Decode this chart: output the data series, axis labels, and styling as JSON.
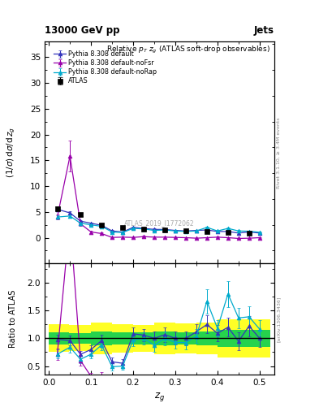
{
  "title_top": "13000 GeV pp",
  "title_top_right": "Jets",
  "plot_title": "Relative $p_T$ $z_g$ (ATLAS soft-drop observables)",
  "ylabel_main": "(1/$\\sigma$) d$\\sigma$/d $z_g$",
  "ylabel_ratio": "Ratio to ATLAS",
  "xlabel": "$z_g$",
  "watermark": "ATLAS_2019_I1772062",
  "right_label_top": "Rivet 3.1.10, ≥ 3.4M events",
  "right_label_bottom": "[arXiv:1306.3436]",
  "atlas_x": [
    0.02,
    0.075,
    0.125,
    0.175,
    0.225,
    0.275,
    0.325,
    0.375,
    0.425,
    0.475
  ],
  "atlas_y": [
    5.6,
    4.5,
    2.5,
    2.0,
    1.7,
    1.5,
    1.3,
    1.2,
    1.0,
    0.9
  ],
  "atlas_yerr": [
    0.4,
    0.3,
    0.2,
    0.15,
    0.12,
    0.12,
    0.1,
    0.1,
    0.1,
    0.09
  ],
  "default_x": [
    0.02,
    0.05,
    0.075,
    0.1,
    0.125,
    0.15,
    0.175,
    0.2,
    0.225,
    0.25,
    0.275,
    0.3,
    0.325,
    0.35,
    0.375,
    0.4,
    0.425,
    0.45,
    0.475,
    0.5
  ],
  "default_y": [
    5.5,
    4.8,
    3.2,
    2.8,
    2.4,
    1.3,
    1.1,
    2.0,
    1.8,
    1.6,
    1.6,
    1.4,
    1.3,
    1.4,
    1.5,
    1.2,
    1.2,
    0.9,
    1.1,
    0.9
  ],
  "default_yerr": [
    0.25,
    0.25,
    0.2,
    0.18,
    0.18,
    0.12,
    0.12,
    0.15,
    0.15,
    0.15,
    0.15,
    0.12,
    0.12,
    0.12,
    0.15,
    0.12,
    0.12,
    0.12,
    0.12,
    0.1
  ],
  "nofsr_x": [
    0.02,
    0.05,
    0.075,
    0.1,
    0.125,
    0.15,
    0.175,
    0.2,
    0.225,
    0.25,
    0.275,
    0.3,
    0.325,
    0.35,
    0.375,
    0.4,
    0.425,
    0.45,
    0.475,
    0.5
  ],
  "nofsr_y": [
    4.0,
    15.8,
    2.7,
    1.1,
    0.8,
    0.05,
    0.1,
    0.05,
    0.2,
    0.1,
    0.1,
    0.05,
    0.0,
    -0.1,
    0.0,
    0.1,
    0.0,
    -0.15,
    -0.1,
    0.0
  ],
  "nofsr_yerr": [
    0.5,
    3.0,
    0.35,
    0.18,
    0.18,
    0.1,
    0.1,
    0.08,
    0.15,
    0.12,
    0.12,
    0.08,
    0.08,
    0.08,
    0.08,
    0.08,
    0.08,
    0.08,
    0.08,
    0.08
  ],
  "norap_x": [
    0.02,
    0.05,
    0.075,
    0.1,
    0.125,
    0.15,
    0.175,
    0.2,
    0.225,
    0.25,
    0.275,
    0.3,
    0.325,
    0.35,
    0.375,
    0.4,
    0.425,
    0.45,
    0.475,
    0.5
  ],
  "norap_y": [
    4.0,
    4.2,
    2.8,
    2.5,
    2.2,
    1.1,
    1.0,
    1.8,
    1.7,
    1.4,
    1.5,
    1.3,
    1.2,
    1.3,
    2.0,
    1.3,
    1.8,
    1.3,
    1.25,
    1.05
  ],
  "norap_yerr": [
    0.35,
    0.35,
    0.25,
    0.2,
    0.18,
    0.12,
    0.12,
    0.15,
    0.15,
    0.15,
    0.15,
    0.12,
    0.12,
    0.12,
    0.2,
    0.12,
    0.15,
    0.12,
    0.12,
    0.1
  ],
  "color_atlas": "#000000",
  "color_default": "#3333bb",
  "color_nofsr": "#9900aa",
  "color_norap": "#00aacc",
  "ylim_main": [
    -5,
    38
  ],
  "ylim_ratio": [
    0.35,
    2.35
  ],
  "xlim": [
    -0.01,
    0.535
  ],
  "yticks_main": [
    0,
    5,
    10,
    15,
    20,
    25,
    30,
    35
  ],
  "yticks_ratio": [
    0.5,
    1.0,
    1.5,
    2.0
  ],
  "xticks": [
    0.0,
    0.1,
    0.2,
    0.3,
    0.4,
    0.5
  ]
}
